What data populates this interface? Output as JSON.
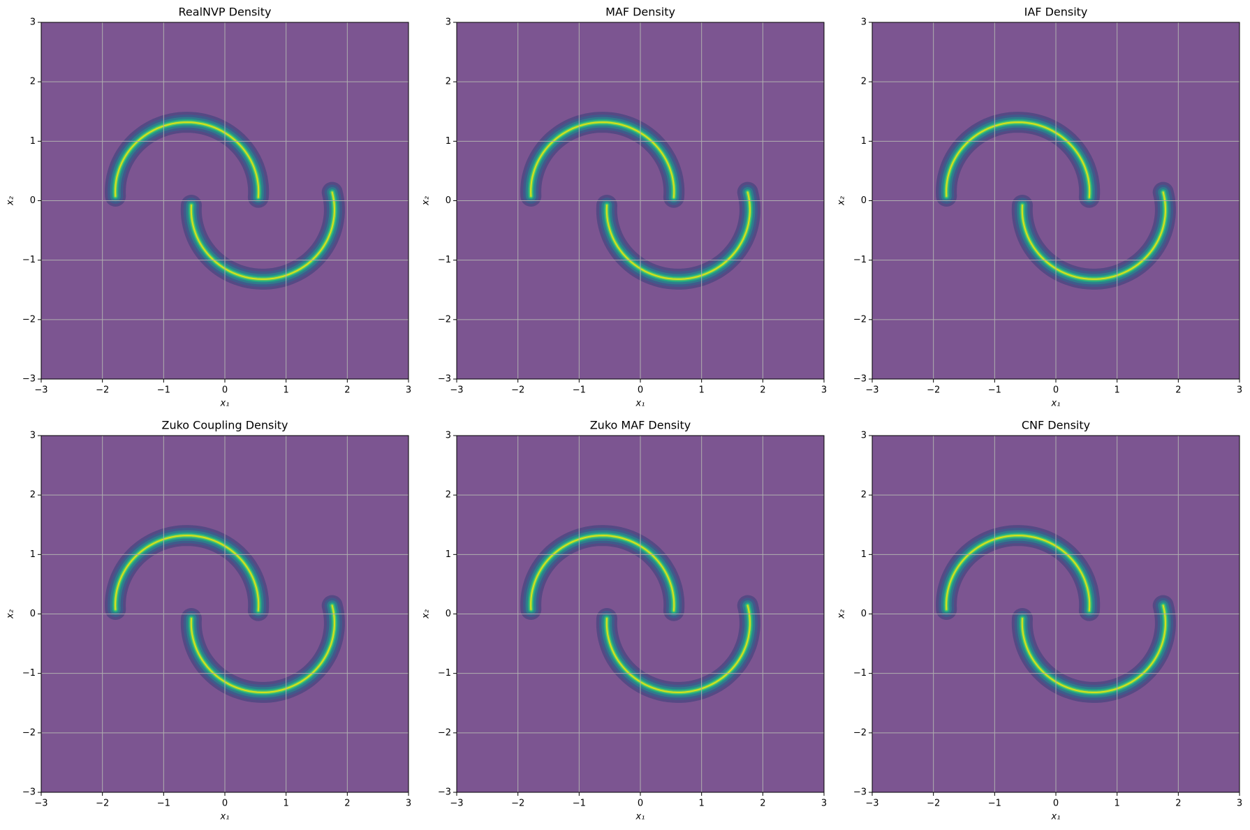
{
  "chart_data": [
    {
      "type": "contour",
      "title": "RealNVP Density",
      "xlabel": "x₁",
      "ylabel": "x₂",
      "xlim": [
        -3,
        3
      ],
      "ylim": [
        -3,
        3
      ],
      "xticks": [
        {
          "value": -3,
          "label": "−3"
        },
        {
          "value": -2,
          "label": "−2"
        },
        {
          "value": -1,
          "label": "−1"
        },
        0,
        1,
        2,
        3
      ],
      "yticks": [
        {
          "value": -3,
          "label": "−3"
        },
        {
          "value": -2,
          "label": "−2"
        },
        {
          "value": -1,
          "label": "−1"
        },
        0,
        1,
        2,
        3
      ],
      "grid": true,
      "color": "#7c5591"
    },
    {
      "type": "contour",
      "title": "MAF Density",
      "xlabel": "x₁",
      "ylabel": "x₂",
      "xlim": [
        -3,
        3
      ],
      "ylim": [
        -3,
        3
      ],
      "xticks": [
        {
          "value": -3,
          "label": "−3"
        },
        {
          "value": -2,
          "label": "−2"
        },
        {
          "value": -1,
          "label": "−1"
        },
        0,
        1,
        2,
        3
      ],
      "yticks": [
        {
          "value": -3,
          "label": "−3"
        },
        {
          "value": -2,
          "label": "−2"
        },
        {
          "value": -1,
          "label": "−1"
        },
        0,
        1,
        2,
        3
      ],
      "grid": true,
      "color": "#7c5591"
    },
    {
      "type": "contour",
      "title": "IAF Density",
      "xlabel": "x₁",
      "ylabel": "x₂",
      "xlim": [
        -3,
        3
      ],
      "ylim": [
        -3,
        3
      ],
      "xticks": [
        {
          "value": -3,
          "label": "−3"
        },
        {
          "value": -2,
          "label": "−2"
        },
        {
          "value": -1,
          "label": "−1"
        },
        0,
        1,
        2,
        3
      ],
      "yticks": [
        {
          "value": -3,
          "label": "−3"
        },
        {
          "value": -2,
          "label": "−2"
        },
        {
          "value": -1,
          "label": "−1"
        },
        0,
        1,
        2,
        3
      ],
      "grid": true,
      "color": "#7c5591"
    },
    {
      "type": "contour",
      "title": "Zuko Coupling Density",
      "xlabel": "x₁",
      "ylabel": "x₂",
      "xlim": [
        -3,
        3
      ],
      "ylim": [
        -3,
        3
      ],
      "xticks": [
        {
          "value": -3,
          "label": "−3"
        },
        {
          "value": -2,
          "label": "−2"
        },
        {
          "value": -1,
          "label": "−1"
        },
        0,
        1,
        2,
        3
      ],
      "yticks": [
        {
          "value": -3,
          "label": "−3"
        },
        {
          "value": -2,
          "label": "−2"
        },
        {
          "value": -1,
          "label": "−1"
        },
        0,
        1,
        2,
        3
      ],
      "grid": true,
      "color": "#7c5591"
    },
    {
      "type": "contour",
      "title": "Zuko MAF Density",
      "xlabel": "x₁",
      "ylabel": "x₂",
      "xlim": [
        -3,
        3
      ],
      "ylim": [
        -3,
        3
      ],
      "xticks": [
        {
          "value": -3,
          "label": "−3"
        },
        {
          "value": -2,
          "label": "−2"
        },
        {
          "value": -1,
          "label": "−1"
        },
        0,
        1,
        2,
        3
      ],
      "yticks": [
        {
          "value": -3,
          "label": "−3"
        },
        {
          "value": -2,
          "label": "−2"
        },
        {
          "value": -1,
          "label": "−1"
        },
        0,
        1,
        2,
        3
      ],
      "grid": true,
      "color": "#7c5591"
    },
    {
      "type": "contour",
      "title": "CNF Density",
      "xlabel": "x₁",
      "ylabel": "x₂",
      "xlim": [
        -3,
        3
      ],
      "ylim": [
        -3,
        3
      ],
      "xticks": [
        {
          "value": -3,
          "label": "−3"
        },
        {
          "value": -2,
          "label": "−2"
        },
        {
          "value": -1,
          "label": "−1"
        },
        0,
        1,
        2,
        3
      ],
      "yticks": [
        {
          "value": -3,
          "label": "−3"
        },
        {
          "value": -2,
          "label": "−2"
        },
        {
          "value": -1,
          "label": "−1"
        },
        0,
        1,
        2,
        3
      ],
      "grid": true,
      "color": "#7c5591"
    }
  ]
}
